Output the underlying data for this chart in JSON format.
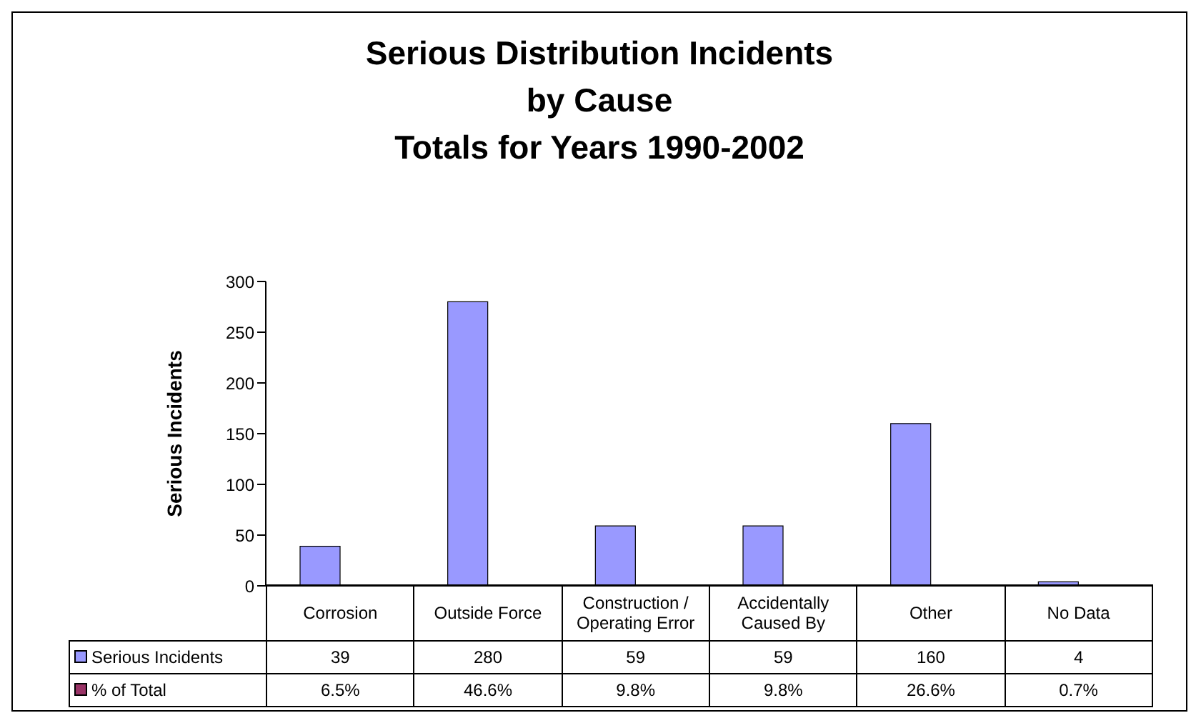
{
  "chart_data": {
    "type": "bar",
    "title": "Serious Distribution Incidents\nby Cause\nTotals for Years 1990-2002",
    "ylabel": "Serious Incidents",
    "categories": [
      "Corrosion",
      "Outside Force",
      "Construction / Operating Error",
      "Accidentally Caused By",
      "Other",
      "No Data"
    ],
    "series": [
      {
        "name": "Serious Incidents",
        "color": "#9999ff",
        "values": [
          39,
          280,
          59,
          59,
          160,
          4
        ]
      },
      {
        "name": "% of Total",
        "color": "#993366",
        "values": [
          null,
          null,
          null,
          null,
          null,
          null
        ],
        "value_labels": [
          "6.5%",
          "46.6%",
          "9.8%",
          "9.8%",
          "26.6%",
          "0.7%"
        ]
      }
    ],
    "ylim": [
      0,
      300
    ],
    "yticks": [
      0,
      50,
      100,
      150,
      200,
      250,
      300
    ],
    "grid": false,
    "data_labels": true
  }
}
